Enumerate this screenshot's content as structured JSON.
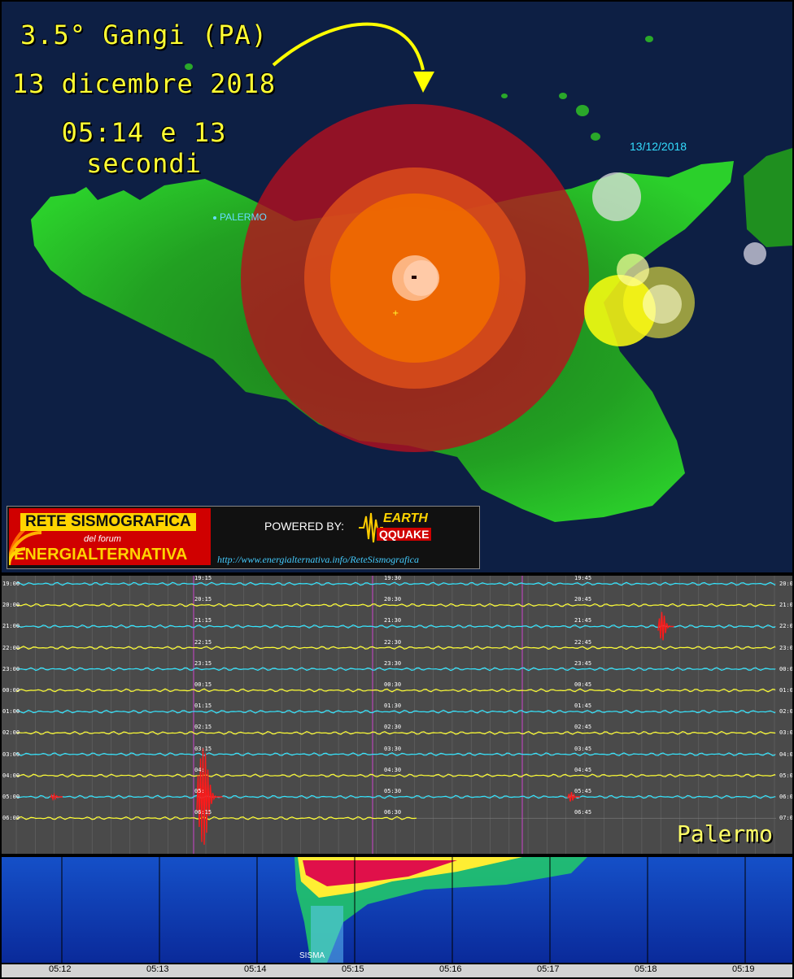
{
  "headline": {
    "line1": "3.5°  Gangi (PA)",
    "line2": "13 dicembre 2018",
    "line3": "05:14 e 13 secondi"
  },
  "map": {
    "date_label": "13/12/2018",
    "city_label": "PALERMO"
  },
  "banner": {
    "rete": "RETE SISMOGRAFICA",
    "del_forum": "del forum",
    "energia": "ENERGIALTERNATIVA",
    "powered": "POWERED BY:",
    "earth": "EARTH",
    "quake": "QQUAKE",
    "url": "http://www.energialternativa.info/ReteSismografica"
  },
  "helicorder": {
    "station": "Palermo",
    "left_labels": [
      "19:00",
      "20:00",
      "21:00",
      "22:00",
      "23:00",
      "00:00",
      "01:00",
      "02:00",
      "03:00",
      "04:00",
      "05:00",
      "06:00"
    ],
    "right_labels": [
      "20:00",
      "21:00",
      "22:00",
      "23:00",
      "00:00",
      "01:00",
      "02:00",
      "03:00",
      "04:00",
      "05:00",
      "06:00",
      "07:00"
    ],
    "mid1_labels": [
      "19:15",
      "20:15",
      "21:15",
      "22:15",
      "23:15",
      "00:15",
      "01:15",
      "02:15",
      "03:15",
      "04:",
      "05:",
      "06:15"
    ],
    "mid2_labels": [
      "19:30",
      "20:30",
      "21:30",
      "22:30",
      "23:30",
      "00:30",
      "01:30",
      "02:30",
      "03:30",
      "04:30",
      "05:30",
      "06:30"
    ],
    "mid3_labels": [
      "19:45",
      "20:45",
      "21:45",
      "22:45",
      "23:45",
      "00:45",
      "01:45",
      "02:45",
      "03:45",
      "04:45",
      "05:45",
      "06:45"
    ]
  },
  "spectrogram": {
    "event_label": "SISMA",
    "time_ticks": [
      "05:12",
      "05:13",
      "05:14",
      "05:15",
      "05:16",
      "05:17",
      "05:18",
      "05:19"
    ]
  },
  "colors": {
    "title": "#ffff33",
    "land": "#1a9a1a",
    "sea": "#0d1f44",
    "trace_cyan": "#33e6ff",
    "trace_yellow": "#ffff33",
    "event_red": "#ff1a1a"
  }
}
